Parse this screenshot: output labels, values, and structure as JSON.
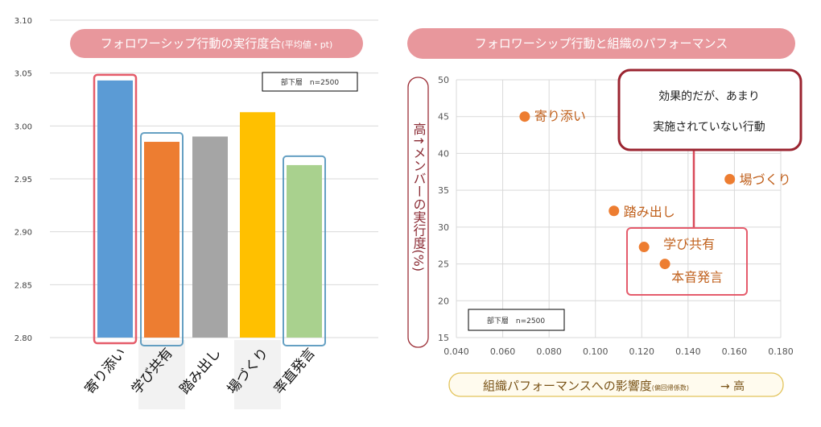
{
  "chart_data": [
    {
      "type": "bar",
      "title": "フォロワーシップ行動の実行度合",
      "title_suffix": "(平均値・pt)",
      "categories": [
        "寄り添い",
        "学び共有",
        "踏み出し",
        "場づくり",
        "率直発言"
      ],
      "values": [
        3.043,
        2.985,
        2.99,
        3.013,
        2.963
      ],
      "colors": [
        "#5b9bd5",
        "#ed7d31",
        "#a5a5a5",
        "#ffc000",
        "#a9d18e"
      ],
      "highlight": {
        "red": [
          "寄り添い"
        ],
        "blue": [
          "学び共有",
          "率直発言"
        ],
        "shaded_labels": [
          "学び共有",
          "場づくり"
        ]
      },
      "ylim": [
        2.8,
        3.1
      ],
      "yticks": [
        "2.80",
        "2.85",
        "2.90",
        "2.95",
        "3.00",
        "3.05",
        "3.10"
      ],
      "grid": true,
      "note": "部下層　n=2500"
    },
    {
      "type": "scatter",
      "title": "フォロワーシップ行動と組織のパフォーマンス",
      "xlabel": "組織パフォーマンスへの影響度",
      "xlabel_suffix": "(偏回帰係数)",
      "xlabel_arrow": "→ 高",
      "ylabel": "高↑メンバーの実行度(%)",
      "xlim": [
        0.04,
        0.18
      ],
      "ylim": [
        15,
        50
      ],
      "xticks": [
        "0.040",
        "0.060",
        "0.080",
        "0.100",
        "0.120",
        "0.140",
        "0.160",
        "0.180"
      ],
      "yticks": [
        "15",
        "20",
        "25",
        "30",
        "35",
        "40",
        "45",
        "50"
      ],
      "grid": true,
      "points": [
        {
          "label": "寄り添い",
          "x": 0.0695,
          "y": 45.0
        },
        {
          "label": "場づくり",
          "x": 0.158,
          "y": 36.5
        },
        {
          "label": "踏み出し",
          "x": 0.108,
          "y": 32.2
        },
        {
          "label": "学び共有",
          "x": 0.121,
          "y": 27.3
        },
        {
          "label": "本音発言",
          "x": 0.13,
          "y": 25.0
        }
      ],
      "point_color": "#ed7d31",
      "callout": [
        "効果的だが、あまり",
        "実施されていない行動"
      ],
      "note": "部下層　n=2500"
    }
  ]
}
